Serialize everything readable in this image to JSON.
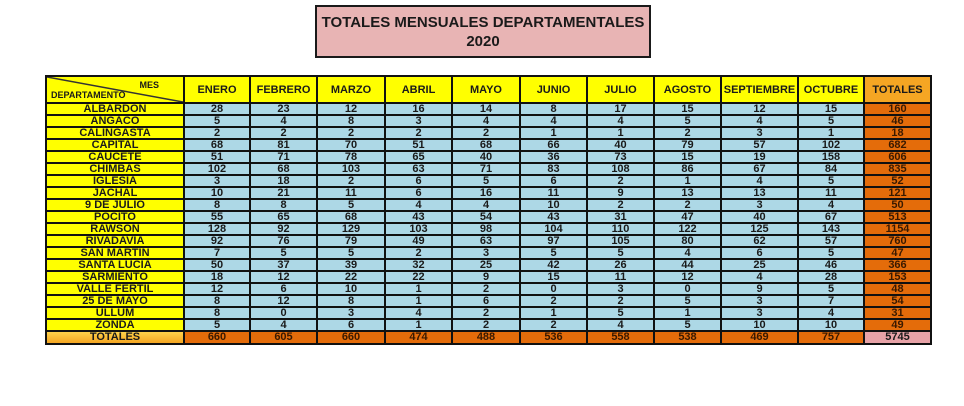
{
  "title": {
    "line1": "TOTALES MENSUALES DEPARTAMENTALES",
    "line2": "2020"
  },
  "table": {
    "corner": {
      "top_label": "MES",
      "bottom_label": "DEPARTAMENTO"
    },
    "columns": [
      "ENERO",
      "FEBRERO",
      "MARZO",
      "ABRIL",
      "MAYO",
      "JUNIO",
      "JULIO",
      "AGOSTO",
      "SEPTIEMBRE",
      "OCTUBRE",
      "TOTALES"
    ],
    "rows": [
      {
        "dept": "ALBARDON",
        "values": [
          28,
          23,
          12,
          16,
          14,
          8,
          17,
          15,
          12,
          15
        ],
        "total": 160
      },
      {
        "dept": "ANGACO",
        "values": [
          5,
          4,
          8,
          3,
          4,
          4,
          4,
          5,
          4,
          5
        ],
        "total": 46
      },
      {
        "dept": "CALINGASTA",
        "values": [
          2,
          2,
          2,
          2,
          2,
          1,
          1,
          2,
          3,
          1
        ],
        "total": 18
      },
      {
        "dept": "CAPITAL",
        "values": [
          68,
          81,
          70,
          51,
          68,
          66,
          40,
          79,
          57,
          102
        ],
        "total": 682
      },
      {
        "dept": "CAUCETE",
        "values": [
          51,
          71,
          78,
          65,
          40,
          36,
          73,
          15,
          19,
          158
        ],
        "total": 606
      },
      {
        "dept": "CHIMBAS",
        "values": [
          102,
          68,
          103,
          63,
          71,
          83,
          108,
          86,
          67,
          84
        ],
        "total": 835
      },
      {
        "dept": "IGLESIA",
        "values": [
          3,
          18,
          2,
          6,
          5,
          6,
          2,
          1,
          4,
          5
        ],
        "total": 52
      },
      {
        "dept": "JACHAL",
        "values": [
          10,
          21,
          11,
          6,
          16,
          11,
          9,
          13,
          13,
          11
        ],
        "total": 121
      },
      {
        "dept": "9 DE JULIO",
        "values": [
          8,
          8,
          5,
          4,
          4,
          10,
          2,
          2,
          3,
          4
        ],
        "total": 50
      },
      {
        "dept": "POCITO",
        "values": [
          55,
          65,
          68,
          43,
          54,
          43,
          31,
          47,
          40,
          67
        ],
        "total": 513
      },
      {
        "dept": "RAWSON",
        "values": [
          128,
          92,
          129,
          103,
          98,
          104,
          110,
          122,
          125,
          143
        ],
        "total": 1154
      },
      {
        "dept": "RIVADAVIA",
        "values": [
          92,
          76,
          79,
          49,
          63,
          97,
          105,
          80,
          62,
          57
        ],
        "total": 760
      },
      {
        "dept": "SAN MARTIN",
        "values": [
          7,
          5,
          5,
          2,
          3,
          5,
          5,
          4,
          6,
          5
        ],
        "total": 47
      },
      {
        "dept": "SANTA LUCIA",
        "values": [
          50,
          37,
          39,
          32,
          25,
          42,
          26,
          44,
          25,
          46
        ],
        "total": 366
      },
      {
        "dept": "SARMIENTO",
        "values": [
          18,
          12,
          22,
          22,
          9,
          15,
          11,
          12,
          4,
          28
        ],
        "total": 153
      },
      {
        "dept": "VALLE FERTIL",
        "values": [
          12,
          6,
          10,
          1,
          2,
          0,
          3,
          0,
          9,
          5
        ],
        "total": 48
      },
      {
        "dept": "25 DE MAYO",
        "values": [
          8,
          12,
          8,
          1,
          6,
          2,
          2,
          5,
          3,
          7
        ],
        "total": 54
      },
      {
        "dept": "ULLUM",
        "values": [
          8,
          0,
          3,
          4,
          2,
          1,
          5,
          1,
          3,
          4
        ],
        "total": 31
      },
      {
        "dept": "ZONDA",
        "values": [
          5,
          4,
          6,
          1,
          2,
          2,
          4,
          5,
          10,
          10
        ],
        "total": 49
      }
    ],
    "totals_row": {
      "label": "TOTALES",
      "values": [
        660,
        605,
        660,
        474,
        488,
        536,
        558,
        538,
        469,
        757
      ],
      "grand_total": 5745
    }
  },
  "colors": {
    "title_bg": "#e8b4b4",
    "header_bg": "#ffff00",
    "totals_header_bg": "#f5a623",
    "dept_bg": "#ffff00",
    "value_bg": "#add8e6",
    "totals_bg": "#e46c0a",
    "grand_total_bg": "#e8a3a8"
  }
}
